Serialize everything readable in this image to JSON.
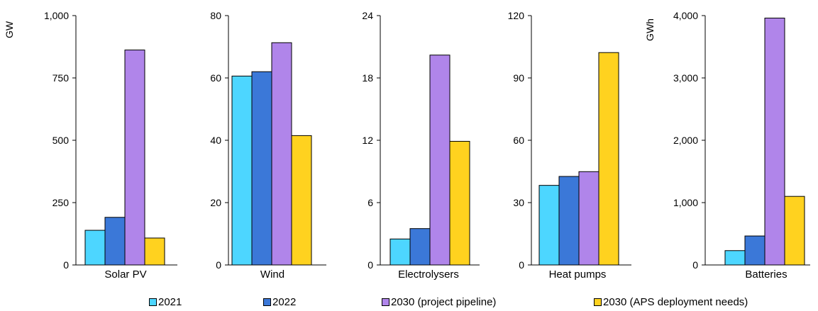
{
  "chart_data": [
    {
      "type": "bar",
      "title": "",
      "xlabel": "",
      "ylabel": "GW",
      "categories": [
        "Solar PV"
      ],
      "ylim": [
        0,
        1000
      ],
      "yticks": [
        "0",
        "250",
        "500",
        "750",
        "1,000"
      ],
      "yticks_values": [
        0,
        250,
        500,
        750,
        1000
      ],
      "series": [
        {
          "name": "2021",
          "values": [
            139
          ]
        },
        {
          "name": "2022",
          "values": [
            191
          ]
        },
        {
          "name": "2030 (project pipeline)",
          "values": [
            862
          ]
        },
        {
          "name": "2030 (APS deployment needs)",
          "values": [
            108
          ]
        }
      ]
    },
    {
      "type": "bar",
      "title": "",
      "xlabel": "",
      "ylabel": "",
      "categories": [
        "Wind"
      ],
      "ylim": [
        0,
        80
      ],
      "yticks": [
        "0",
        "20",
        "40",
        "60",
        "80"
      ],
      "yticks_values": [
        0,
        20,
        40,
        60,
        80
      ],
      "series": [
        {
          "name": "2021",
          "values": [
            60.6
          ]
        },
        {
          "name": "2022",
          "values": [
            62
          ]
        },
        {
          "name": "2030 (project pipeline)",
          "values": [
            71.3
          ]
        },
        {
          "name": "2030 (APS deployment needs)",
          "values": [
            41.5
          ]
        }
      ]
    },
    {
      "type": "bar",
      "title": "",
      "xlabel": "",
      "ylabel": "",
      "categories": [
        "Electrolysers"
      ],
      "ylim": [
        0,
        24
      ],
      "yticks": [
        "0",
        "6",
        "12",
        "18",
        "24"
      ],
      "yticks_values": [
        0,
        6,
        12,
        18,
        24
      ],
      "series": [
        {
          "name": "2021",
          "values": [
            2.5
          ]
        },
        {
          "name": "2022",
          "values": [
            3.5
          ]
        },
        {
          "name": "2030 (project pipeline)",
          "values": [
            20.2
          ]
        },
        {
          "name": "2030 (APS deployment needs)",
          "values": [
            11.9
          ]
        }
      ]
    },
    {
      "type": "bar",
      "title": "",
      "xlabel": "",
      "ylabel": "",
      "categories": [
        "Heat pumps"
      ],
      "ylim": [
        0,
        120
      ],
      "yticks": [
        "0",
        "30",
        "60",
        "90",
        "120"
      ],
      "yticks_values": [
        0,
        30,
        60,
        90,
        120
      ],
      "series": [
        {
          "name": "2021",
          "values": [
            38.3
          ]
        },
        {
          "name": "2022",
          "values": [
            42.6
          ]
        },
        {
          "name": "2030 (project pipeline)",
          "values": [
            44.9
          ]
        },
        {
          "name": "2030 (APS deployment needs)",
          "values": [
            102.2
          ]
        }
      ]
    },
    {
      "type": "bar",
      "title": "",
      "xlabel": "",
      "ylabel": "GWh",
      "categories": [
        "Batteries"
      ],
      "ylim": [
        0,
        4000
      ],
      "yticks": [
        "0",
        "1,000",
        "2,000",
        "3,000",
        "4,000"
      ],
      "yticks_values": [
        0,
        1000,
        2000,
        3000,
        4000
      ],
      "series": [
        {
          "name": "2021",
          "values": [
            230
          ]
        },
        {
          "name": "2022",
          "values": [
            465
          ]
        },
        {
          "name": "2030 (project pipeline)",
          "values": [
            3960
          ]
        },
        {
          "name": "2030 (APS deployment needs)",
          "values": [
            1100
          ]
        }
      ]
    }
  ],
  "legend": {
    "position": "bottom",
    "items": [
      {
        "label": "2021",
        "color": "#4dd6ff"
      },
      {
        "label": "2022",
        "color": "#3b78d8"
      },
      {
        "label": "2030 (project pipeline)",
        "color": "#b085ea"
      },
      {
        "label": "2030 (APS deployment needs)",
        "color": "#ffd21f"
      }
    ]
  },
  "grid": false
}
